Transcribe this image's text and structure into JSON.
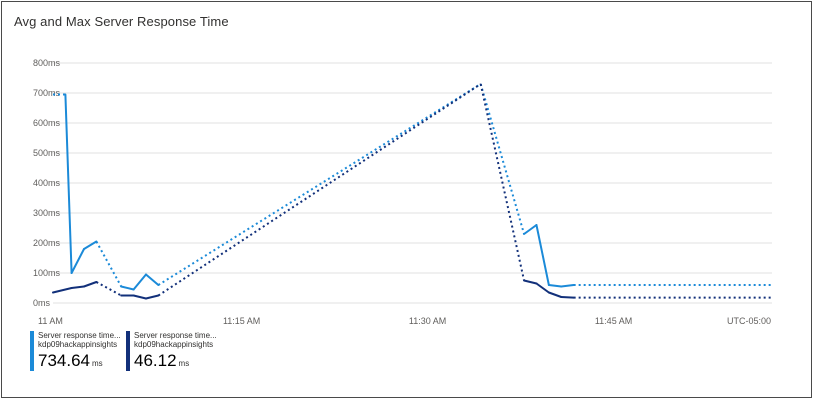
{
  "chart_data": {
    "type": "line",
    "title": "Avg and Max Server Response Time",
    "x_tick_labels": [
      "11 AM",
      "11:15 AM",
      "11:30 AM",
      "11:45 AM"
    ],
    "timezone_label": "UTC-05:00",
    "y_tick_labels": [
      "0ms",
      "100ms",
      "200ms",
      "300ms",
      "400ms",
      "500ms",
      "600ms",
      "700ms",
      "800ms"
    ],
    "x_unit": "minutes after 11 AM",
    "ylim": [
      0,
      800
    ],
    "y_unit": "ms",
    "grid": true,
    "legend_position": "bottom-left",
    "series": [
      {
        "name": "Server response time...",
        "resource": "kdp09hackappinsights",
        "value": "734.64",
        "unit": "ms",
        "color": "#1b8ad8",
        "points": [
          [
            0,
            695,
            "dotted"
          ],
          [
            1,
            695,
            "solid"
          ],
          [
            1.5,
            100,
            "solid"
          ],
          [
            2.5,
            180,
            "solid"
          ],
          [
            3.5,
            205,
            "dotted"
          ],
          [
            5.5,
            55,
            "solid"
          ],
          [
            6.5,
            45,
            "solid"
          ],
          [
            7.5,
            95,
            "solid"
          ],
          [
            8.5,
            60,
            "dotted"
          ],
          [
            34.5,
            730,
            "dotted"
          ],
          [
            38,
            230,
            "solid"
          ],
          [
            39,
            260,
            "solid"
          ],
          [
            40,
            60,
            "solid"
          ],
          [
            41,
            55,
            "solid"
          ],
          [
            42,
            60,
            "dotted"
          ],
          [
            58,
            60,
            "end"
          ]
        ]
      },
      {
        "name": "Server response time...",
        "resource": "kdp09hackappinsights",
        "value": "46.12",
        "unit": "ms",
        "color": "#12307a",
        "points": [
          [
            0,
            35,
            "solid"
          ],
          [
            1.5,
            50,
            "solid"
          ],
          [
            2.5,
            55,
            "solid"
          ],
          [
            3.5,
            70,
            "dotted"
          ],
          [
            5.5,
            25,
            "solid"
          ],
          [
            6.5,
            25,
            "solid"
          ],
          [
            7.5,
            15,
            "solid"
          ],
          [
            8.5,
            25,
            "dotted"
          ],
          [
            34.5,
            730,
            "dotted"
          ],
          [
            38,
            75,
            "solid"
          ],
          [
            39,
            65,
            "solid"
          ],
          [
            40,
            35,
            "solid"
          ],
          [
            41,
            20,
            "solid"
          ],
          [
            42,
            18,
            "dotted"
          ],
          [
            58,
            18,
            "end"
          ]
        ]
      }
    ]
  }
}
